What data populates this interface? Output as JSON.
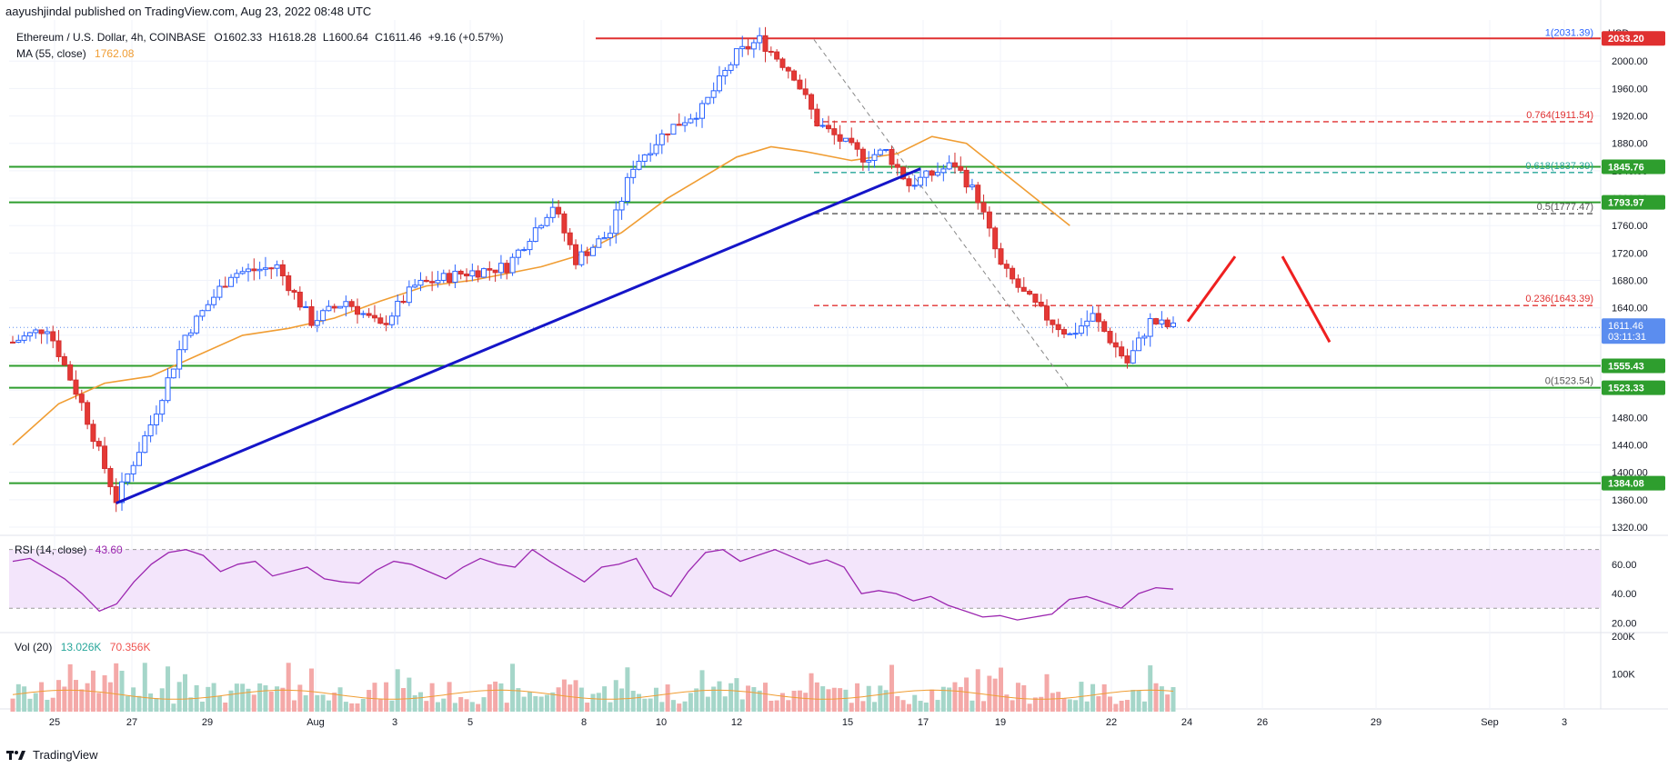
{
  "header": {
    "published_by": "aayushjindal published on TradingView.com, Aug 23, 2022 08:48 UTC"
  },
  "legend": {
    "symbol": "Ethereum / U.S. Dollar, 4h, COINBASE",
    "open": "O1602.33",
    "high": "H1618.28",
    "low": "L1600.64",
    "close": "C1611.46",
    "change": "+9.16 (+0.57%)",
    "ma_label": "MA (55, close)",
    "ma_value": "1762.08",
    "rsi_label": "RSI (14, close)",
    "rsi_value": "43.60",
    "vol_label": "Vol (20)",
    "vol_value1": "13.026K",
    "vol_value2": "70.356K"
  },
  "footer": {
    "brand": "TradingView"
  },
  "colors": {
    "up": "#26a69a",
    "down": "#ef5350",
    "up_fill": "#2962ff",
    "ma": "#f09d33",
    "trendline": "#1515c8",
    "support": "#2e9e2e",
    "fib": "#e03030",
    "rsi_line": "#9c27b0",
    "rsi_band": "#f3e5fb",
    "last_price": "#5b8def"
  },
  "chart_data": [
    {
      "type": "candlestick",
      "title": "Ethereum / U.S. Dollar, 4h, COINBASE",
      "currency": "USD",
      "ylim": [
        1320,
        2060
      ],
      "y_ticks": [
        1320,
        1360,
        1400,
        1440,
        1480,
        1520,
        1560,
        1600,
        1640,
        1680,
        1720,
        1760,
        1800,
        1840,
        1880,
        1920,
        1960,
        2000
      ],
      "x_ticks": [
        "25",
        "27",
        "29",
        "Aug",
        "3",
        "5",
        "8",
        "10",
        "12",
        "15",
        "17",
        "19",
        "22",
        "24",
        "26",
        "29",
        "Sep",
        "3"
      ],
      "price_path": [
        [
          0,
          1590
        ],
        [
          6,
          1612
        ],
        [
          12,
          1500
        ],
        [
          18,
          1360
        ],
        [
          24,
          1470
        ],
        [
          30,
          1600
        ],
        [
          38,
          1690
        ],
        [
          46,
          1700
        ],
        [
          52,
          1620
        ],
        [
          58,
          1650
        ],
        [
          64,
          1612
        ],
        [
          70,
          1672
        ],
        [
          78,
          1690
        ],
        [
          86,
          1700
        ],
        [
          94,
          1790
        ],
        [
          98,
          1710
        ],
        [
          104,
          1750
        ],
        [
          108,
          1848
        ],
        [
          114,
          1900
        ],
        [
          120,
          1930
        ],
        [
          126,
          2010
        ],
        [
          130,
          2031
        ],
        [
          136,
          1980
        ],
        [
          140,
          1910
        ],
        [
          148,
          1860
        ],
        [
          152,
          1868
        ],
        [
          156,
          1820
        ],
        [
          164,
          1850
        ],
        [
          168,
          1800
        ],
        [
          172,
          1700
        ],
        [
          176,
          1660
        ],
        [
          180,
          1626
        ],
        [
          184,
          1600
        ],
        [
          188,
          1628
        ],
        [
          194,
          1560
        ],
        [
          198,
          1620
        ],
        [
          202,
          1611
        ]
      ],
      "ma55_path": [
        [
          0,
          1440
        ],
        [
          8,
          1500
        ],
        [
          16,
          1530
        ],
        [
          24,
          1540
        ],
        [
          32,
          1570
        ],
        [
          40,
          1600
        ],
        [
          48,
          1610
        ],
        [
          56,
          1625
        ],
        [
          64,
          1650
        ],
        [
          72,
          1672
        ],
        [
          80,
          1680
        ],
        [
          86,
          1690
        ],
        [
          92,
          1700
        ],
        [
          98,
          1715
        ],
        [
          106,
          1750
        ],
        [
          114,
          1800
        ],
        [
          120,
          1830
        ],
        [
          126,
          1860
        ],
        [
          132,
          1875
        ],
        [
          138,
          1868
        ],
        [
          146,
          1855
        ],
        [
          154,
          1865
        ],
        [
          160,
          1890
        ],
        [
          166,
          1880
        ],
        [
          172,
          1840
        ],
        [
          178,
          1800
        ],
        [
          184,
          1760
        ]
      ],
      "horizontal_levels": [
        {
          "label": "2033.20",
          "value": 2033.2,
          "color": "#e03030"
        },
        {
          "label": "1845.76",
          "value": 1845.76,
          "color": "#2e9e2e"
        },
        {
          "label": "1793.97",
          "value": 1793.97,
          "color": "#2e9e2e"
        },
        {
          "label": "1555.43",
          "value": 1555.43,
          "color": "#2e9e2e"
        },
        {
          "label": "1523.33",
          "value": 1523.33,
          "color": "#2e9e2e"
        },
        {
          "label": "1384.08",
          "value": 1384.08,
          "color": "#2e9e2e"
        }
      ],
      "fib_levels": [
        {
          "label": "1(2031.39)",
          "value": 2031.39,
          "color": "#2962ff"
        },
        {
          "label": "0.764(1911.54)",
          "value": 1911.54,
          "color": "#e03030"
        },
        {
          "label": "0.618(1837.39)",
          "value": 1837.39,
          "color": "#26a69a"
        },
        {
          "label": "0.5(1777.47)",
          "value": 1777.47,
          "color": "#555555"
        },
        {
          "label": "0.236(1643.39)",
          "value": 1643.39,
          "color": "#e03030"
        },
        {
          "label": "0(1523.54)",
          "value": 1523.54,
          "color": "#555555"
        }
      ],
      "last_price": {
        "value": "1611.46",
        "countdown": "03:11:31"
      },
      "trendline": [
        [
          18,
          1355
        ],
        [
          158,
          1843
        ]
      ],
      "projection": [
        [
          0,
          1620
        ],
        [
          4,
          1715
        ],
        [
          8,
          1715
        ],
        [
          12,
          1590
        ]
      ]
    },
    {
      "type": "line",
      "title": "RSI (14, close)",
      "ylim": [
        14,
        76
      ],
      "y_ticks": [
        20.0,
        40.0,
        60.0
      ],
      "band": [
        30,
        70
      ],
      "values": [
        62,
        64,
        57,
        50,
        40,
        28,
        33,
        48,
        60,
        68,
        70,
        66,
        55,
        60,
        62,
        52,
        55,
        58,
        50,
        48,
        47,
        56,
        62,
        60,
        55,
        50,
        58,
        64,
        60,
        58,
        70,
        62,
        55,
        48,
        58,
        60,
        64,
        44,
        38,
        55,
        68,
        70,
        62,
        66,
        70,
        65,
        60,
        63,
        58,
        40,
        42,
        40,
        35,
        38,
        32,
        28,
        24,
        25,
        22,
        24,
        26,
        36,
        38,
        34,
        30,
        40,
        44,
        43
      ]
    },
    {
      "type": "bar",
      "title": "Vol (20)",
      "ylim": [
        0,
        200000
      ],
      "y_ticks": [
        "100K",
        "200K"
      ]
    }
  ]
}
